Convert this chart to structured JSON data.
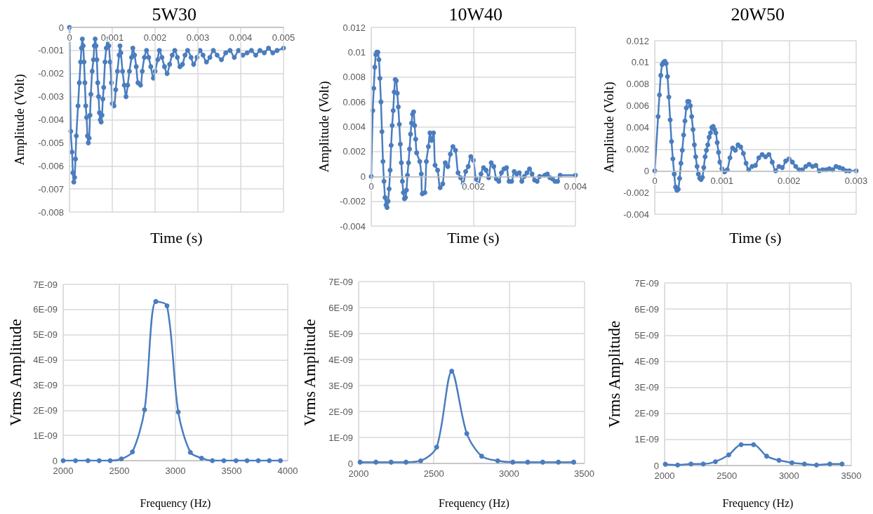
{
  "chart_data": [
    {
      "type": "line",
      "title": "5W30",
      "xlabel": "Time (s)",
      "ylabel": "Amplitude (Volt)",
      "color": "#4a7dbf",
      "marker": "circle",
      "line_style": "solid",
      "grid": true,
      "xlim": [
        0,
        0.005
      ],
      "xticks": [
        0,
        0.001,
        0.002,
        0.003,
        0.004,
        0.005
      ],
      "ylim": [
        -0.008,
        0
      ],
      "yticks": [
        -0.008,
        -0.007,
        -0.006,
        -0.005,
        -0.004,
        -0.003,
        -0.002,
        -0.001,
        0
      ],
      "x": [
        0,
        3e-05,
        6e-05,
        8e-05,
        0.0001,
        0.00012,
        0.00014,
        0.00016,
        0.0002,
        0.00023,
        0.00026,
        0.00028,
        0.0003,
        0.00032,
        0.00034,
        0.00036,
        0.00038,
        0.0004,
        0.00042,
        0.00044,
        0.00046,
        0.00048,
        0.0005,
        0.00053,
        0.00056,
        0.00058,
        0.0006,
        0.00062,
        0.00064,
        0.00066,
        0.00068,
        0.0007,
        0.00072,
        0.00074,
        0.00076,
        0.00078,
        0.0008,
        0.00083,
        0.00086,
        0.00089,
        0.00092,
        0.00095,
        0.00098,
        0.001,
        0.00104,
        0.00108,
        0.00112,
        0.00116,
        0.00118,
        0.0012,
        0.00124,
        0.00128,
        0.00132,
        0.00136,
        0.0014,
        0.00145,
        0.00148,
        0.00152,
        0.00156,
        0.0016,
        0.00166,
        0.0017,
        0.00175,
        0.0018,
        0.00185,
        0.0019,
        0.00196,
        0.002,
        0.00206,
        0.0021,
        0.00216,
        0.00222,
        0.00228,
        0.00234,
        0.0024,
        0.00246,
        0.00252,
        0.00258,
        0.00264,
        0.0027,
        0.00276,
        0.00284,
        0.0029,
        0.00298,
        0.00305,
        0.00312,
        0.0032,
        0.00328,
        0.00336,
        0.00345,
        0.00355,
        0.00365,
        0.00375,
        0.00385,
        0.00395,
        0.00405,
        0.00415,
        0.00425,
        0.00435,
        0.00445,
        0.00455,
        0.00465,
        0.00475,
        0.00485,
        0.005
      ],
      "values": [
        0,
        -0.0045,
        -0.0054,
        -0.0063,
        -0.0067,
        -0.0065,
        -0.0057,
        -0.0047,
        -0.0034,
        -0.0024,
        -0.0015,
        -0.0009,
        -0.0005,
        -0.0008,
        -0.0015,
        -0.0024,
        -0.0034,
        -0.0039,
        -0.0047,
        -0.005,
        -0.0048,
        -0.0038,
        -0.0029,
        -0.0019,
        -0.0014,
        -0.0008,
        -0.0005,
        -0.0008,
        -0.0014,
        -0.0024,
        -0.003,
        -0.0037,
        -0.004,
        -0.0041,
        -0.0038,
        -0.0031,
        -0.0026,
        -0.0015,
        -0.0009,
        -0.0005,
        -0.0008,
        -0.0015,
        -0.0024,
        -0.0033,
        -0.0034,
        -0.0027,
        -0.0019,
        -0.0012,
        -0.0008,
        -0.0011,
        -0.0019,
        -0.0025,
        -0.003,
        -0.0025,
        -0.0019,
        -0.0013,
        -0.0009,
        -0.0012,
        -0.0017,
        -0.0024,
        -0.0025,
        -0.0019,
        -0.0013,
        -0.001,
        -0.0013,
        -0.0017,
        -0.0022,
        -0.0019,
        -0.0014,
        -0.001,
        -0.0013,
        -0.0017,
        -0.002,
        -0.0016,
        -0.0012,
        -0.001,
        -0.0013,
        -0.0017,
        -0.0016,
        -0.0012,
        -0.001,
        -0.0013,
        -0.0016,
        -0.0013,
        -0.001,
        -0.0012,
        -0.0015,
        -0.0013,
        -0.001,
        -0.0012,
        -0.0014,
        -0.0011,
        -0.001,
        -0.0013,
        -0.001,
        -0.0012,
        -0.0011,
        -0.001,
        -0.0012,
        -0.001,
        -0.0011,
        -0.0009,
        -0.0011,
        -0.001,
        -0.0009
      ]
    },
    {
      "type": "line",
      "title": "10W40",
      "xlabel": "Time (s)",
      "ylabel": "Amplitude (Volt)",
      "color": "#4a7dbf",
      "marker": "circle",
      "line_style": "solid",
      "grid": true,
      "xlim": [
        0,
        0.004
      ],
      "xticks": [
        0,
        0.002,
        0.004
      ],
      "ylim": [
        -0.004,
        0.012
      ],
      "yticks": [
        -0.004,
        -0.002,
        0,
        0.002,
        0.004,
        0.006,
        0.008,
        0.01,
        0.012
      ],
      "x": [
        0,
        3e-05,
        5e-05,
        7e-05,
        9e-05,
        0.00011,
        0.00013,
        0.00015,
        0.00017,
        0.00019,
        0.00021,
        0.00023,
        0.00025,
        0.00027,
        0.00029,
        0.00031,
        0.00033,
        0.00035,
        0.00037,
        0.00039,
        0.00041,
        0.00043,
        0.00045,
        0.00047,
        0.00049,
        0.00051,
        0.00053,
        0.00055,
        0.00057,
        0.00059,
        0.00061,
        0.00063,
        0.00065,
        0.00067,
        0.00069,
        0.00071,
        0.00073,
        0.00075,
        0.00077,
        0.00079,
        0.00081,
        0.00083,
        0.00085,
        0.00087,
        0.00089,
        0.00095,
        0.00098,
        0.001,
        0.00105,
        0.00108,
        0.00112,
        0.00115,
        0.00118,
        0.00122,
        0.00125,
        0.0013,
        0.00135,
        0.0014,
        0.00145,
        0.0015,
        0.00155,
        0.0016,
        0.00165,
        0.0017,
        0.00175,
        0.0018,
        0.00185,
        0.0019,
        0.00195,
        0.002,
        0.00205,
        0.0021,
        0.00215,
        0.0022,
        0.00225,
        0.0023,
        0.00235,
        0.0024,
        0.00245,
        0.0025,
        0.00255,
        0.0026,
        0.00265,
        0.0027,
        0.00275,
        0.0028,
        0.00285,
        0.0029,
        0.00295,
        0.003,
        0.00305,
        0.0031,
        0.00315,
        0.0032,
        0.00325,
        0.0033,
        0.0034,
        0.00345,
        0.0035,
        0.00355,
        0.0036,
        0.00365,
        0.0037,
        0.004
      ],
      "values": [
        0,
        0.0053,
        0.0071,
        0.0088,
        0.0098,
        0.01,
        0.01,
        0.0094,
        0.0079,
        0.006,
        0.0036,
        0.0012,
        -0.0004,
        -0.0017,
        -0.0023,
        -0.0025,
        -0.002,
        -0.001,
        0.0005,
        0.0025,
        0.0041,
        0.0053,
        0.0068,
        0.0078,
        0.0077,
        0.0067,
        0.0056,
        0.0042,
        0.0026,
        0.0011,
        -0.0004,
        -0.0013,
        -0.0018,
        -0.0017,
        -0.0011,
        0.0001,
        0.0011,
        0.0022,
        0.0034,
        0.0043,
        0.005,
        0.0052,
        0.0041,
        0.003,
        0.0019,
        0.0012,
        0.0002,
        -0.0014,
        -0.0013,
        0.0012,
        0.0024,
        0.0035,
        0.0029,
        0.0035,
        0.0009,
        0.0005,
        -0.0009,
        -0.0006,
        0.0011,
        0.0008,
        0.0018,
        0.0024,
        0.0021,
        0.0003,
        -0.0001,
        -0.0006,
        0.0004,
        0.0008,
        0.0016,
        0.0013,
        -0.0002,
        -0.0006,
        0.0002,
        0.0007,
        0.0005,
        -0.0001,
        0.0011,
        0.0008,
        -0.0002,
        -0.0004,
        0.0003,
        0.0006,
        0.0007,
        -0.0004,
        -0.0004,
        0.0004,
        0.0002,
        0.0003,
        -0.0004,
        0,
        0.0003,
        0.0006,
        0.0002,
        -0.0003,
        -0.0004,
        0,
        0.0001,
        0.0002,
        -0.0001,
        -0.0002,
        -0.0004,
        -0.0004,
        0.0001,
        0.0001
      ]
    },
    {
      "type": "line",
      "title": "20W50",
      "xlabel": "Time (s)",
      "ylabel": "Amplitude (Volt)",
      "color": "#4a7dbf",
      "marker": "circle",
      "line_style": "solid",
      "grid": true,
      "xlim": [
        0,
        0.003
      ],
      "xticks": [
        0,
        0.001,
        0.002,
        0.003
      ],
      "ylim": [
        -0.004,
        0.012
      ],
      "yticks": [
        -0.004,
        -0.002,
        0,
        0.002,
        0.004,
        0.006,
        0.008,
        0.01,
        0.012
      ],
      "x": [
        0,
        5e-05,
        7e-05,
        9e-05,
        0.00011,
        0.00013,
        0.00015,
        0.00017,
        0.00019,
        0.00021,
        0.00023,
        0.00025,
        0.00027,
        0.00029,
        0.00031,
        0.00033,
        0.00035,
        0.00037,
        0.00039,
        0.00041,
        0.00043,
        0.00045,
        0.00047,
        0.00049,
        0.00051,
        0.00053,
        0.00055,
        0.00057,
        0.00059,
        0.00061,
        0.00063,
        0.00065,
        0.00067,
        0.00069,
        0.00071,
        0.00073,
        0.00075,
        0.00077,
        0.00079,
        0.00081,
        0.00083,
        0.00085,
        0.00087,
        0.00089,
        0.00091,
        0.00093,
        0.00095,
        0.00097,
        0.001,
        0.00104,
        0.00108,
        0.00112,
        0.00116,
        0.0012,
        0.00124,
        0.00128,
        0.00132,
        0.00136,
        0.0014,
        0.00145,
        0.0015,
        0.00155,
        0.0016,
        0.00165,
        0.0017,
        0.00175,
        0.0018,
        0.00185,
        0.0019,
        0.00195,
        0.002,
        0.00205,
        0.0021,
        0.00215,
        0.0022,
        0.00225,
        0.0023,
        0.00235,
        0.0024,
        0.00245,
        0.0025,
        0.00255,
        0.0026,
        0.00265,
        0.0027,
        0.00275,
        0.0028,
        0.00285,
        0.0029,
        0.003
      ],
      "values": [
        0,
        0.005,
        0.007,
        0.0088,
        0.0098,
        0.01,
        0.0101,
        0.0099,
        0.0087,
        0.0068,
        0.0047,
        0.0027,
        0.0011,
        -0.0003,
        -0.0015,
        -0.0018,
        -0.0017,
        -0.0007,
        0.0007,
        0.0019,
        0.0033,
        0.0046,
        0.0058,
        0.0064,
        0.0064,
        0.006,
        0.005,
        0.0038,
        0.0024,
        0.0013,
        0.0004,
        -0.0003,
        -0.0007,
        -0.0008,
        -0.0006,
        0.0003,
        0.0013,
        0.0019,
        0.0024,
        0.0031,
        0.0035,
        0.004,
        0.0041,
        0.0038,
        0.0035,
        0.0026,
        0.0017,
        0.0008,
        0.0002,
        -0.0001,
        0.0001,
        0.0012,
        0.0021,
        0.0019,
        0.0024,
        0.0022,
        0.0016,
        0.0007,
        0.0001,
        0.0004,
        0.0005,
        0.0012,
        0.0015,
        0.0013,
        0.0015,
        0.0008,
        0,
        0.0004,
        0.0003,
        0.0009,
        0.0011,
        0.0008,
        0.0004,
        0.0001,
        0.0001,
        0.0004,
        0.0006,
        0.0004,
        0.0005,
        0,
        0.0001,
        0.0001,
        0.0002,
        0.0001,
        0.0004,
        0.0003,
        0.0002,
        0,
        0,
        0
      ]
    },
    {
      "type": "line",
      "xlabel": "Frequency (Hz)",
      "ylabel": "Vrms Amplitude",
      "color": "#4a7dbf",
      "marker": "circle",
      "line_style": "solid",
      "grid": true,
      "xlim": [
        2000,
        4000
      ],
      "xticks": [
        2000,
        2500,
        3000,
        3500,
        4000
      ],
      "ylim": [
        0,
        7e-09
      ],
      "yticks": [
        0,
        {
          "value": 1e-09,
          "label": "1E-09"
        },
        {
          "value": 2e-09,
          "label": "2E-09"
        },
        {
          "value": 3e-09,
          "label": "3E-09"
        },
        {
          "value": 4e-09,
          "label": "4E-09"
        },
        {
          "value": 5e-09,
          "label": "5E-09"
        },
        {
          "value": 6e-09,
          "label": "6E-09"
        },
        {
          "value": 7e-09,
          "label": "7E-09"
        }
      ],
      "x": [
        2000,
        2110,
        2221,
        2321,
        2419,
        2519,
        2617,
        2725,
        2825,
        2925,
        3025,
        3133,
        3233,
        3329,
        3431,
        3540,
        3638,
        3738,
        3836,
        3935
      ],
      "values": [
        0,
        0,
        0,
        0,
        0,
        7e-11,
        3.5e-10,
        2.02e-09,
        6.32e-09,
        6.15e-09,
        1.93e-09,
        3.3e-10,
        1e-10,
        0,
        0,
        0,
        0,
        0,
        0,
        0
      ]
    },
    {
      "type": "line",
      "xlabel": "Frequency (Hz)",
      "ylabel": "Vrms Amplitude",
      "color": "#4a7dbf",
      "marker": "circle",
      "line_style": "solid",
      "grid": true,
      "xlim": [
        2000,
        3500
      ],
      "xticks": [
        2000,
        2500,
        3000,
        3500
      ],
      "ylim": [
        0,
        7e-09
      ],
      "yticks": [
        0,
        {
          "value": 1e-09,
          "label": "1E-09"
        },
        {
          "value": 2e-09,
          "label": "2E-09"
        },
        {
          "value": 3e-09,
          "label": "3E-09"
        },
        {
          "value": 4e-09,
          "label": "4E-09"
        },
        {
          "value": 5e-09,
          "label": "5E-09"
        },
        {
          "value": 6e-09,
          "label": "6E-09"
        },
        {
          "value": 7e-09,
          "label": "7E-09"
        }
      ],
      "x": [
        2010,
        2115,
        2216,
        2315,
        2413,
        2519,
        2619,
        2719,
        2818,
        2925,
        3025,
        3124,
        3224,
        3328,
        3430
      ],
      "values": [
        5e-11,
        5e-11,
        5e-11,
        5e-11,
        1e-10,
        6.3e-10,
        3.55e-09,
        1.15e-09,
        2.8e-10,
        1e-10,
        5e-11,
        5e-11,
        5e-11,
        5e-11,
        5e-11
      ]
    },
    {
      "type": "line",
      "xlabel": "Frequency (Hz)",
      "ylabel": "Vrms Amplitude",
      "color": "#4a7dbf",
      "marker": "circle",
      "line_style": "solid",
      "grid": true,
      "xlim": [
        2000,
        3500
      ],
      "xticks": [
        2000,
        2500,
        3000,
        3500
      ],
      "ylim": [
        0,
        7e-09
      ],
      "yticks": [
        0,
        {
          "value": 1e-09,
          "label": "1E-09"
        },
        {
          "value": 2e-09,
          "label": "2E-09"
        },
        {
          "value": 3e-09,
          "label": "3E-09"
        },
        {
          "value": 4e-09,
          "label": "4E-09"
        },
        {
          "value": 5e-09,
          "label": "5E-09"
        },
        {
          "value": 6e-09,
          "label": "6E-09"
        },
        {
          "value": 7e-09,
          "label": "7E-09"
        }
      ],
      "x": [
        2006,
        2105,
        2212,
        2311,
        2409,
        2516,
        2615,
        2715,
        2820,
        2919,
        3024,
        3124,
        3221,
        3328,
        3426
      ],
      "values": [
        5e-11,
        2e-11,
        6e-11,
        6e-11,
        1.5e-10,
        4.1e-10,
        8e-10,
        8e-10,
        3.6e-10,
        2e-10,
        1.1e-10,
        6e-11,
        2e-11,
        6e-11,
        6e-11
      ]
    }
  ]
}
